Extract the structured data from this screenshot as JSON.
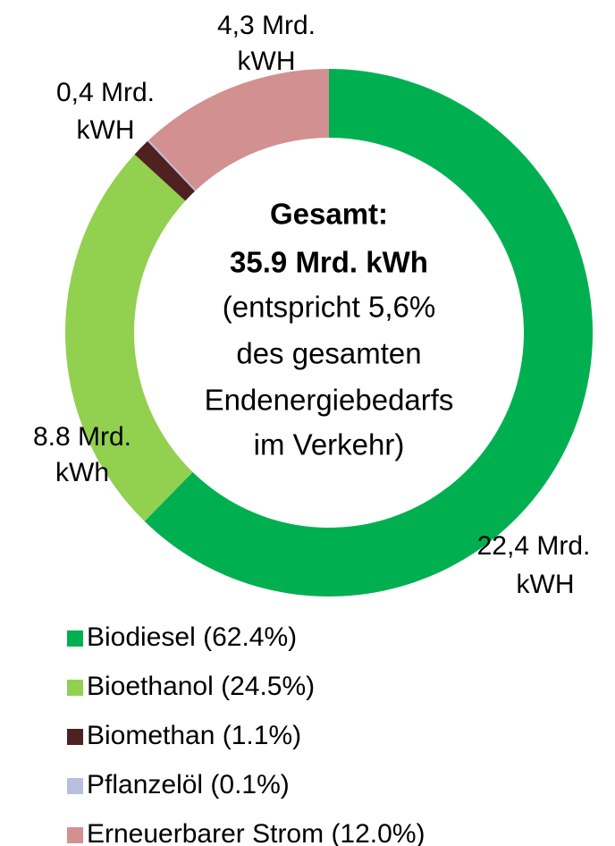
{
  "chart_data": {
    "type": "donut",
    "categories": [
      "Biodiesel (62.4%)",
      "Bioethanol (24.5%)",
      "Biomethan (1.1%)",
      "Pflanzelöl (0.1%)",
      "Erneuerbarer Strom (12.0%)"
    ],
    "values": [
      22.4,
      8.8,
      0.4,
      0.04,
      4.3
    ],
    "value_labels": [
      "22,4 Mrd.\nkWH",
      "8.8 Mrd.\nkWh",
      "0,4 Mrd.\nkWH",
      null,
      "4,3 Mrd.\nkWH"
    ],
    "colors": [
      "#00b050",
      "#92d050",
      "#4f2121",
      "#b4c0dc",
      "#d39090"
    ],
    "center_text": [
      "Gesamt:",
      "35.9 Mrd. kWh",
      "(entspricht 5,6%",
      "des gesamten",
      "Endenergiebedarfs",
      "im Verkehr)"
    ]
  }
}
